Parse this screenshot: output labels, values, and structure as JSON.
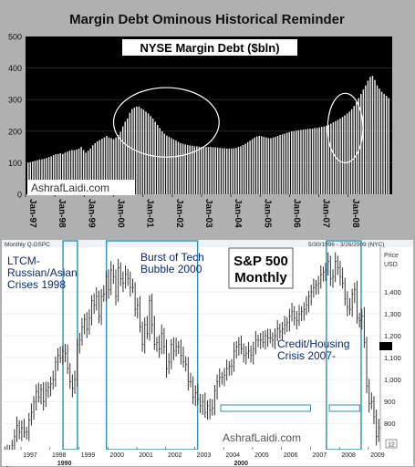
{
  "title": "Margin Debt Ominous Historical Reminder",
  "colors": {
    "page_bg": "#b0b0b0",
    "top_panel_bg": "#000000",
    "top_bars": "#e8e8e8",
    "bottom_panel_bg": "#ffffff",
    "price_bars": "#333333",
    "highlight_box": "#2c8fb5",
    "label_text": "#0a2a7a",
    "circle_outline": "#ffffff"
  },
  "chart_data": [
    {
      "type": "bar",
      "title": "NYSE Margin Debt ($bln)",
      "watermark": "AshrafLaidi.com",
      "y_ticks": [
        0,
        100,
        200,
        300,
        400,
        500
      ],
      "ylim": [
        0,
        500
      ],
      "x_tick_labels": [
        "Jan-97",
        "Jan-98",
        "Jan-99",
        "Jan-00",
        "Jan-01",
        "Jan-02",
        "Jan-03",
        "Jan-04",
        "Jan-05",
        "Jan-06",
        "Jan-07",
        "Jan-08"
      ],
      "x_start_year": 1997,
      "circled_periods": [
        {
          "start": 2000.0,
          "end": 2003.6
        },
        {
          "start": 2007.3,
          "end": 2008.5
        }
      ],
      "values": [
        100,
        102,
        104,
        106,
        108,
        110,
        111,
        113,
        115,
        118,
        120,
        124,
        127,
        128,
        130,
        128,
        132,
        135,
        138,
        140,
        140,
        142,
        145,
        150,
        140,
        132,
        138,
        145,
        155,
        162,
        168,
        172,
        176,
        180,
        185,
        180,
        178,
        175,
        180,
        188,
        198,
        215,
        230,
        240,
        258,
        270,
        275,
        278,
        278,
        272,
        268,
        262,
        256,
        248,
        240,
        230,
        220,
        210,
        200,
        192,
        186,
        182,
        178,
        174,
        170,
        166,
        162,
        160,
        158,
        156,
        155,
        154,
        152,
        152,
        151,
        150,
        150,
        150,
        150,
        150,
        149,
        149,
        148,
        147,
        146,
        146,
        145,
        145,
        145,
        146,
        147,
        150,
        152,
        156,
        160,
        165,
        170,
        175,
        180,
        183,
        185,
        184,
        182,
        180,
        178,
        178,
        180,
        182,
        185,
        188,
        190,
        192,
        195,
        197,
        199,
        200,
        202,
        203,
        204,
        205,
        206,
        207,
        208,
        208,
        210,
        210,
        212,
        214,
        215,
        217,
        220,
        224,
        228,
        232,
        236,
        240,
        245,
        250,
        256,
        262,
        270,
        280,
        292,
        305,
        318,
        332,
        345,
        360,
        372,
        375,
        362,
        345,
        335,
        325,
        318,
        312,
        305
      ]
    },
    {
      "type": "bar",
      "title": "S&P 500",
      "subtitle": "Monthly",
      "header_left": "Monthly Q.GSPC",
      "header_right": "5/30/1996 - 3/26/2009 (NYC)",
      "price_label": "Price",
      "currency_label": "USD",
      "watermark": "AshrafLaidi.com",
      "y_ticks": [
        800,
        900,
        1000,
        1100,
        1200,
        1300,
        1400
      ],
      "y_tick_labels": [
        "800",
        "900",
        "1,000",
        "1,100",
        "1,200",
        "1,300",
        "1,400"
      ],
      "last_price_marker": "1,100",
      "ylim": [
        680,
        1600
      ],
      "x_tick_labels": [
        "1997",
        "1998",
        "1999",
        "2000",
        "2001",
        "2002",
        "2003",
        "2004",
        "2005",
        "2006",
        "2007",
        "2008",
        "2009"
      ],
      "x_sub_labels": [
        "1990",
        "2000"
      ],
      "corner_box_label": "12",
      "x_start_year": 1996.4,
      "annotations": [
        {
          "text_lines": [
            "LTCM-",
            "Russian/Asian",
            "Crises 1998"
          ],
          "box": {
            "start": 1998.45,
            "end": 1998.95
          }
        },
        {
          "text_lines": [
            "Burst of Tech",
            "Bubble 2000"
          ],
          "box": {
            "start": 1999.95,
            "end": 2003.1
          }
        },
        {
          "text_lines": [
            "Credit/Housing",
            "Crisis 2007-"
          ],
          "box": {
            "start": 2007.55,
            "end": 2008.75
          }
        }
      ],
      "closes": [
        670,
        640,
        660,
        700,
        740,
        790,
        760,
        780,
        760,
        760,
        815,
        850,
        900,
        945,
        920,
        955,
        900,
        950,
        965,
        980,
        1000,
        1080,
        1110,
        1100,
        1130,
        1120,
        1050,
        990,
        960,
        1000,
        1160,
        1180,
        1240,
        1275,
        1230,
        1280,
        1360,
        1340,
        1380,
        1290,
        1380,
        1390,
        1470,
        1410,
        1500,
        1470,
        1380,
        1510,
        1460,
        1440,
        1480,
        1460,
        1420,
        1420,
        1320,
        1340,
        1240,
        1160,
        1250,
        1210,
        1360,
        1250,
        1160,
        1170,
        1140,
        1210,
        1150,
        1050,
        1080,
        1160,
        1130,
        1150,
        1150,
        1110,
        1080,
        1070,
        990,
        990,
        920,
        940,
        910,
        880,
        900,
        850,
        880,
        860,
        870,
        950,
        990,
        1010,
        1010,
        1020,
        1050,
        1060,
        1060,
        1130,
        1150,
        1160,
        1140,
        1110,
        1120,
        1130,
        1110,
        1140,
        1180,
        1180,
        1180,
        1170,
        1200,
        1190,
        1190,
        1180,
        1200,
        1230,
        1220,
        1230,
        1250,
        1260,
        1290,
        1310,
        1280,
        1270,
        1300,
        1310,
        1320,
        1340,
        1380,
        1400,
        1420,
        1430,
        1440,
        1480,
        1490,
        1500,
        1540,
        1460,
        1470,
        1540,
        1510,
        1470,
        1440,
        1370,
        1330,
        1320,
        1390,
        1410,
        1280,
        1270,
        1290,
        1170,
        970,
        890,
        900,
        830,
        740,
        780
      ]
    }
  ]
}
